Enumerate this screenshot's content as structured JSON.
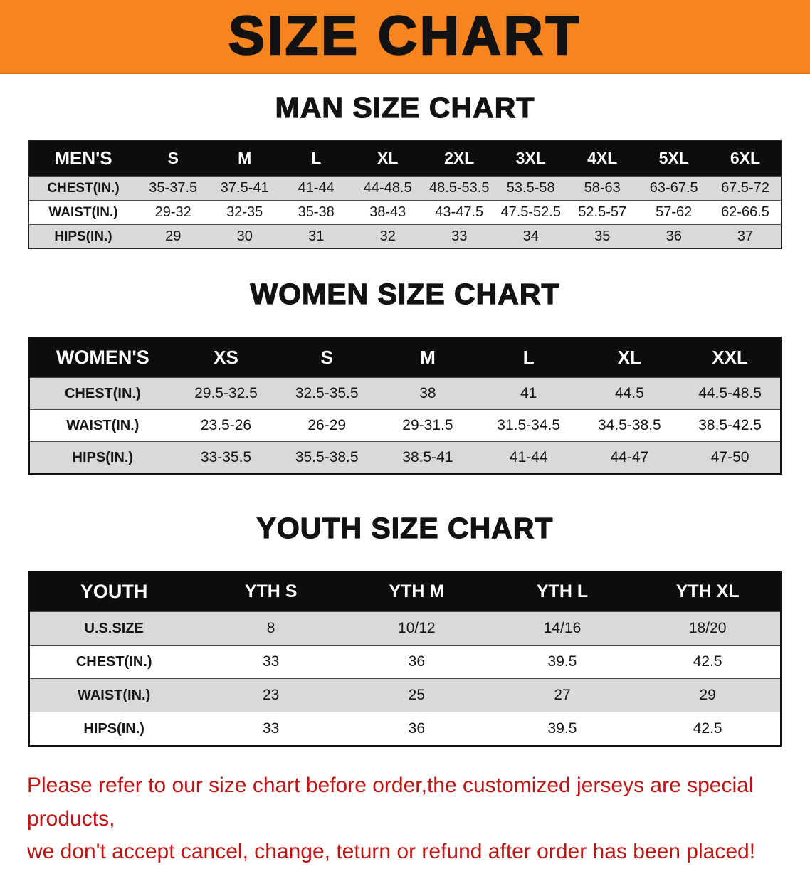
{
  "banner": {
    "title": "SIZE CHART",
    "bg_color": "#F6841F"
  },
  "sections": [
    {
      "id": "men",
      "heading": "MAN SIZE CHART",
      "table": {
        "header": [
          "MEN'S",
          "S",
          "M",
          "L",
          "XL",
          "2XL",
          "3XL",
          "4XL",
          "5XL",
          "6XL"
        ],
        "rows": [
          [
            "CHEST(IN.)",
            "35-37.5",
            "37.5-41",
            "41-44",
            "44-48.5",
            "48.5-53.5",
            "53.5-58",
            "58-63",
            "63-67.5",
            "67.5-72"
          ],
          [
            "WAIST(IN.)",
            "29-32",
            "32-35",
            "35-38",
            "38-43",
            "43-47.5",
            "47.5-52.5",
            "52.5-57",
            "57-62",
            "62-66.5"
          ],
          [
            "HIPS(IN.)",
            "29",
            "30",
            "31",
            "32",
            "33",
            "34",
            "35",
            "36",
            "37"
          ]
        ]
      }
    },
    {
      "id": "women",
      "heading": "WOMEN SIZE CHART",
      "table": {
        "header": [
          "WOMEN'S",
          "XS",
          "S",
          "M",
          "L",
          "XL",
          "XXL"
        ],
        "rows": [
          [
            "CHEST(IN.)",
            "29.5-32.5",
            "32.5-35.5",
            "38",
            "41",
            "44.5",
            "44.5-48.5"
          ],
          [
            "WAIST(IN.)",
            "23.5-26",
            "26-29",
            "29-31.5",
            "31.5-34.5",
            "34.5-38.5",
            "38.5-42.5"
          ],
          [
            "HIPS(IN.)",
            "33-35.5",
            "35.5-38.5",
            "38.5-41",
            "41-44",
            "44-47",
            "47-50"
          ]
        ]
      }
    },
    {
      "id": "youth",
      "heading": "YOUTH SIZE CHART",
      "table": {
        "header": [
          "YOUTH",
          "YTH S",
          "YTH M",
          "YTH L",
          "YTH XL"
        ],
        "rows": [
          [
            "U.S.SIZE",
            "8",
            "10/12",
            "14/16",
            "18/20"
          ],
          [
            "CHEST(IN.)",
            "33",
            "36",
            "39.5",
            "42.5"
          ],
          [
            "WAIST(IN.)",
            "23",
            "25",
            "27",
            "29"
          ],
          [
            "HIPS(IN.)",
            "33",
            "36",
            "39.5",
            "42.5"
          ]
        ]
      }
    }
  ],
  "disclaimer": {
    "line1": "Please refer to our size chart before order,the customized jerseys are special products,",
    "line2": "we don't accept cancel, change, teturn or refund after order has been placed!",
    "color": "#C21313"
  }
}
